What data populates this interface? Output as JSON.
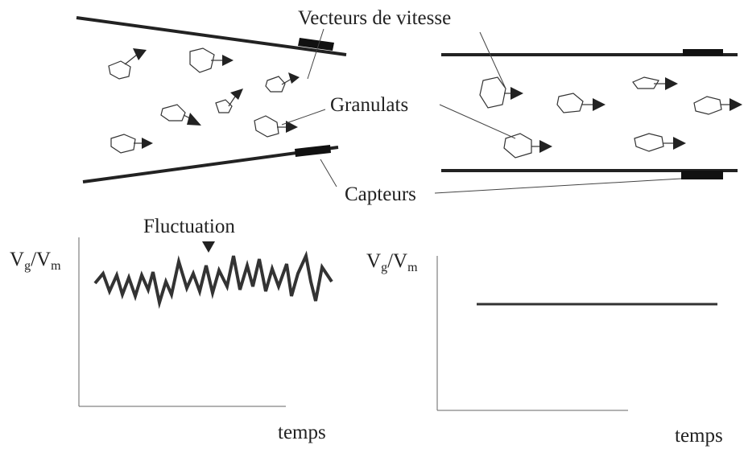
{
  "labels": {
    "velocity_vectors": "Vecteurs de vitesse",
    "aggregates": "Granulats",
    "sensors": "Capteurs",
    "fluctuation": "Fluctuation"
  },
  "left_graph": {
    "y_label": [
      "V",
      "g",
      "/V",
      "m"
    ],
    "x_label": "temps"
  },
  "right_graph": {
    "y_label": [
      "V",
      "g",
      "/V",
      "m"
    ],
    "x_label": "temps"
  }
}
